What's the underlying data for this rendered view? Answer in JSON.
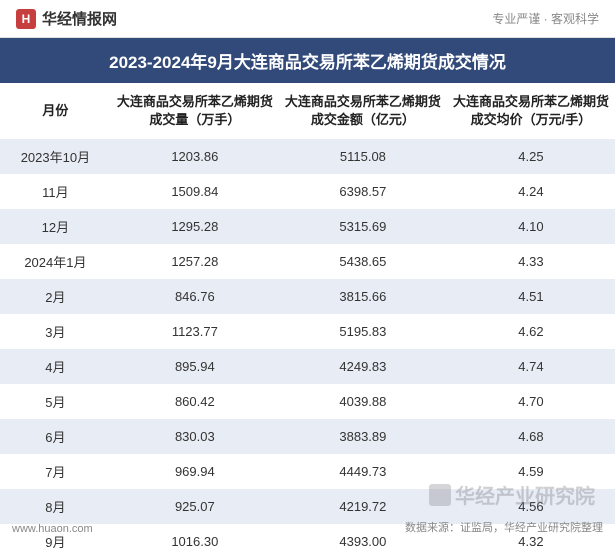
{
  "header": {
    "logo_char": "H",
    "logo_text": "华经情报网",
    "tagline": "专业严谨 · 客观科学"
  },
  "title": "2023-2024年9月大连商品交易所苯乙烯期货成交情况",
  "table": {
    "columns": [
      "月份",
      "大连商品交易所苯乙烯期货成交量（万手）",
      "大连商品交易所苯乙烯期货成交金额（亿元）",
      "大连商品交易所苯乙烯期货成交均价（万元/手）"
    ],
    "rows": [
      [
        "2023年10月",
        "1203.86",
        "5115.08",
        "4.25"
      ],
      [
        "11月",
        "1509.84",
        "6398.57",
        "4.24"
      ],
      [
        "12月",
        "1295.28",
        "5315.69",
        "4.10"
      ],
      [
        "2024年1月",
        "1257.28",
        "5438.65",
        "4.33"
      ],
      [
        "2月",
        "846.76",
        "3815.66",
        "4.51"
      ],
      [
        "3月",
        "1123.77",
        "5195.83",
        "4.62"
      ],
      [
        "4月",
        "895.94",
        "4249.83",
        "4.74"
      ],
      [
        "5月",
        "860.42",
        "4039.88",
        "4.70"
      ],
      [
        "6月",
        "830.03",
        "3883.89",
        "4.68"
      ],
      [
        "7月",
        "969.94",
        "4449.73",
        "4.59"
      ],
      [
        "8月",
        "925.07",
        "4219.72",
        "4.56"
      ],
      [
        "9月",
        "1016.30",
        "4393.00",
        "4.32"
      ]
    ]
  },
  "footer": {
    "source": "数据来源：证监局，华经产业研究院整理",
    "url": "www.huaon.com"
  },
  "watermark": {
    "text": "华经产业研究院"
  },
  "styling": {
    "title_bg": "#324a7a",
    "title_color": "#ffffff",
    "row_odd_bg": "#e8edf5",
    "row_even_bg": "#ffffff",
    "logo_bg": "#c73e3e",
    "text_color": "#333333",
    "muted_color": "#888888"
  }
}
